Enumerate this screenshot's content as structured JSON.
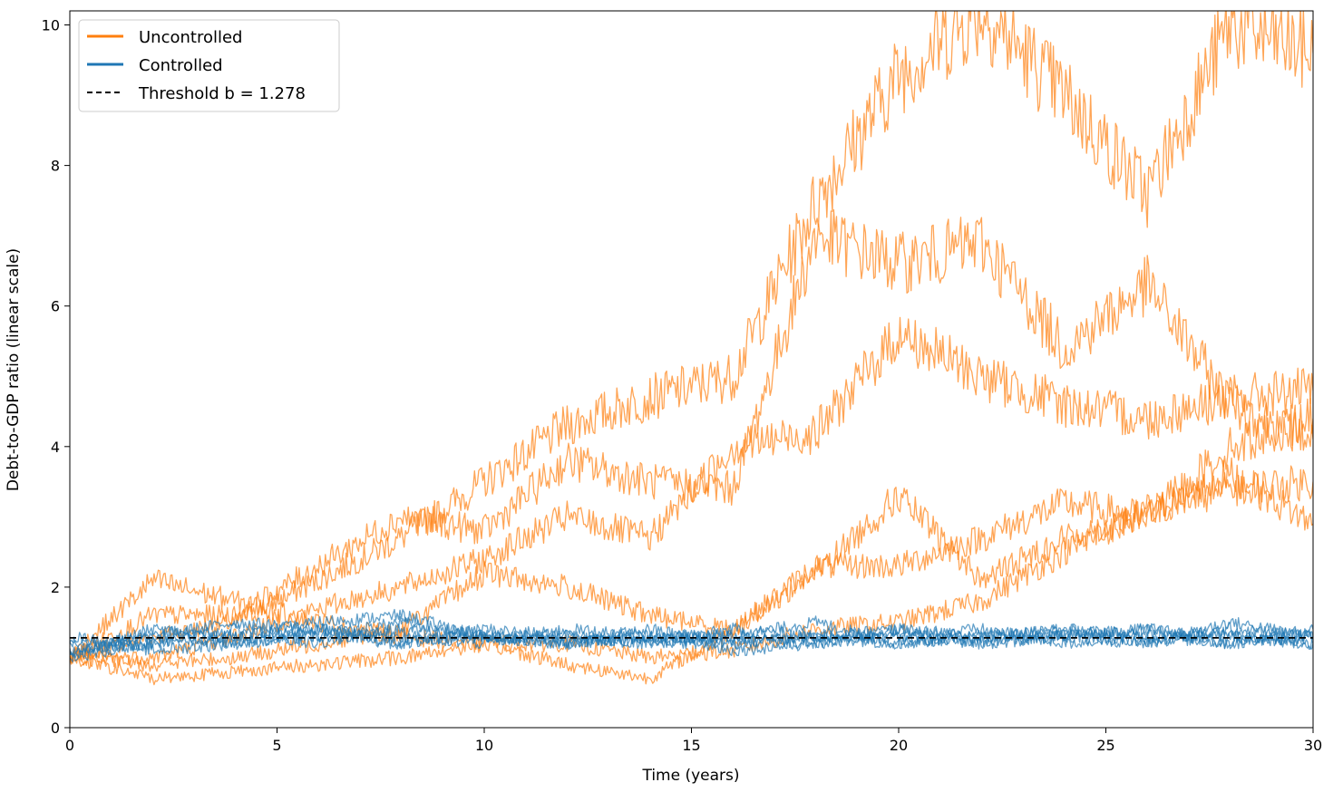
{
  "chart_data": {
    "type": "line",
    "title": "",
    "xlabel": "Time (years)",
    "ylabel": "Debt-to-GDP ratio (linear scale)",
    "xlim": [
      0,
      30
    ],
    "ylim": [
      0,
      10.2
    ],
    "x_ticks": [
      0,
      5,
      10,
      15,
      20,
      25,
      30
    ],
    "y_ticks": [
      0,
      2,
      4,
      6,
      8,
      10
    ],
    "grid": false,
    "legend_position": "top-left",
    "colors": {
      "uncontrolled": "#ff7f0e",
      "controlled": "#1f77b4",
      "threshold": "#000000"
    },
    "threshold": {
      "name": "Threshold b = 1.278",
      "value": 1.278,
      "style": "dashed"
    },
    "legend": [
      {
        "label": "Uncontrolled",
        "color": "#ff7f0e",
        "style": "solid"
      },
      {
        "label": "Controlled",
        "color": "#1f77b4",
        "style": "solid"
      },
      {
        "label": "Threshold b = 1.278",
        "color": "#000000",
        "style": "dashed"
      }
    ],
    "series": [
      {
        "group": "uncontrolled",
        "x": [
          0,
          2,
          4,
          6,
          8,
          10,
          12,
          14,
          16,
          18,
          20,
          22,
          24,
          26,
          28,
          30
        ],
        "values": [
          1.0,
          1.3,
          1.5,
          2.1,
          2.7,
          3.5,
          4.3,
          4.7,
          5.0,
          7.5,
          9.3,
          10.2,
          9.0,
          7.6,
          10.0,
          9.6
        ]
      },
      {
        "group": "uncontrolled",
        "x": [
          0,
          2,
          4,
          6,
          8,
          10,
          12,
          14,
          16,
          18,
          20,
          22,
          24,
          26,
          28,
          30
        ],
        "values": [
          1.0,
          1.6,
          1.6,
          2.3,
          3.0,
          2.8,
          3.8,
          3.5,
          3.4,
          7.0,
          6.6,
          6.9,
          5.4,
          6.3,
          4.6,
          4.1
        ]
      },
      {
        "group": "uncontrolled",
        "x": [
          0,
          2,
          4,
          6,
          8,
          10,
          12,
          14,
          16,
          18,
          20,
          22,
          24,
          26,
          28,
          30
        ],
        "values": [
          1.0,
          1.0,
          1.3,
          1.7,
          2.0,
          2.4,
          3.0,
          2.7,
          4.0,
          4.2,
          5.6,
          5.0,
          4.6,
          4.4,
          4.7,
          4.8
        ]
      },
      {
        "group": "uncontrolled",
        "x": [
          0,
          2,
          4,
          6,
          8,
          10,
          12,
          14,
          16,
          18,
          20,
          22,
          24,
          26,
          28,
          30
        ],
        "values": [
          1.0,
          0.9,
          1.0,
          1.2,
          1.4,
          2.2,
          2.0,
          1.6,
          1.4,
          2.2,
          3.3,
          2.1,
          2.7,
          3.0,
          4.0,
          4.4
        ]
      },
      {
        "group": "uncontrolled",
        "x": [
          0,
          2,
          4,
          6,
          8,
          10,
          12,
          14,
          16,
          18,
          20,
          22,
          24,
          26,
          28,
          30
        ],
        "values": [
          1.0,
          0.7,
          0.8,
          0.9,
          1.0,
          1.2,
          0.9,
          0.7,
          1.4,
          2.3,
          2.3,
          2.7,
          3.2,
          3.0,
          3.6,
          2.9
        ]
      },
      {
        "group": "uncontrolled",
        "x": [
          0,
          2,
          4,
          6,
          8,
          10,
          12,
          14,
          16,
          18,
          20,
          22,
          24,
          26,
          28,
          30
        ],
        "values": [
          1.0,
          2.1,
          1.8,
          1.5,
          1.3,
          1.2,
          1.2,
          1.0,
          1.1,
          1.4,
          1.5,
          1.8,
          2.5,
          3.1,
          3.4,
          3.5
        ]
      },
      {
        "group": "controlled",
        "x": [
          0,
          2,
          4,
          6,
          8,
          10,
          12,
          14,
          16,
          18,
          20,
          22,
          24,
          26,
          28,
          30
        ],
        "values": [
          1.0,
          1.4,
          1.3,
          1.5,
          1.6,
          1.3,
          1.2,
          1.3,
          1.2,
          1.3,
          1.4,
          1.2,
          1.3,
          1.4,
          1.2,
          1.3
        ]
      },
      {
        "group": "controlled",
        "x": [
          0,
          2,
          4,
          6,
          8,
          10,
          12,
          14,
          16,
          18,
          20,
          22,
          24,
          26,
          28,
          30
        ],
        "values": [
          1.1,
          1.2,
          1.4,
          1.3,
          1.2,
          1.4,
          1.3,
          1.2,
          1.3,
          1.5,
          1.2,
          1.3,
          1.4,
          1.2,
          1.5,
          1.3
        ]
      },
      {
        "group": "controlled",
        "x": [
          0,
          2,
          4,
          6,
          8,
          10,
          12,
          14,
          16,
          18,
          20,
          22,
          24,
          26,
          28,
          30
        ],
        "values": [
          1.2,
          1.3,
          1.2,
          1.4,
          1.3,
          1.2,
          1.4,
          1.3,
          1.1,
          1.2,
          1.3,
          1.4,
          1.2,
          1.3,
          1.3,
          1.2
        ]
      },
      {
        "group": "controlled",
        "x": [
          0,
          2,
          4,
          6,
          8,
          10,
          12,
          14,
          16,
          18,
          20,
          22,
          24,
          26,
          28,
          30
        ],
        "values": [
          1.0,
          1.2,
          1.3,
          1.2,
          1.4,
          1.3,
          1.2,
          1.3,
          1.3,
          1.2,
          1.4,
          1.3,
          1.3,
          1.2,
          1.4,
          1.3
        ]
      },
      {
        "group": "controlled",
        "x": [
          0,
          2,
          4,
          6,
          8,
          10,
          12,
          14,
          16,
          18,
          20,
          22,
          24,
          26,
          28,
          30
        ],
        "values": [
          1.3,
          1.1,
          1.2,
          1.3,
          1.5,
          1.3,
          1.3,
          1.2,
          1.4,
          1.3,
          1.2,
          1.3,
          1.4,
          1.3,
          1.2,
          1.4
        ]
      },
      {
        "group": "controlled",
        "x": [
          0,
          2,
          4,
          6,
          8,
          10,
          12,
          14,
          16,
          18,
          20,
          22,
          24,
          26,
          28,
          30
        ],
        "values": [
          1.1,
          1.3,
          1.5,
          1.4,
          1.2,
          1.3,
          1.2,
          1.4,
          1.2,
          1.3,
          1.3,
          1.2,
          1.3,
          1.4,
          1.3,
          1.2
        ]
      }
    ]
  }
}
